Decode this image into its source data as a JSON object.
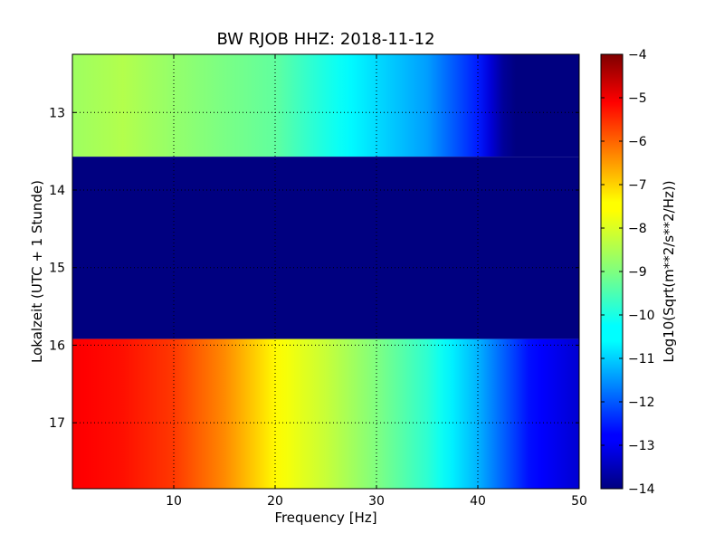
{
  "chart_data": {
    "type": "heatmap",
    "title": "BW RJOB HHZ: 2018-11-12",
    "xlabel": "Frequency [Hz]",
    "ylabel": "Lokalzeit (UTC + 1 Stunde)",
    "xlim": [
      0,
      50
    ],
    "ylim": [
      12.25,
      17.85
    ],
    "x_ticks": [
      10,
      20,
      30,
      40,
      50
    ],
    "x_tick_labels": [
      "10",
      "20",
      "30",
      "40",
      "50"
    ],
    "y_ticks": [
      13,
      14,
      15,
      16,
      17
    ],
    "y_tick_labels": [
      "13",
      "14",
      "15",
      "16",
      "17"
    ],
    "grid": true,
    "colormap": "jet",
    "colorbar": {
      "label": "Log10(Sqrt(m**2/s**2/Hz))",
      "min": -14,
      "max": -4,
      "ticks": [
        -4,
        -5,
        -6,
        -7,
        -8,
        -9,
        -10,
        -11,
        -12,
        -13,
        -14
      ],
      "tick_labels": [
        "−4",
        "−5",
        "−6",
        "−7",
        "−8",
        "−9",
        "−10",
        "−11",
        "−12",
        "−13",
        "−14"
      ]
    },
    "bands": [
      {
        "time_start": 12.25,
        "time_end": 13.57,
        "profile": [
          [
            0,
            -8.7
          ],
          [
            5,
            -8.5
          ],
          [
            10,
            -8.8
          ],
          [
            20,
            -9.3
          ],
          [
            25,
            -10.0
          ],
          [
            30,
            -10.6
          ],
          [
            35,
            -11.2
          ],
          [
            40,
            -12.5
          ],
          [
            42,
            -13.5
          ],
          [
            43,
            -14.0
          ],
          [
            50,
            -14.0
          ]
        ]
      },
      {
        "time_start": 13.57,
        "time_end": 15.92,
        "profile": [
          [
            0,
            -14.0
          ],
          [
            50,
            -14.0
          ]
        ]
      },
      {
        "time_start": 15.92,
        "time_end": 17.85,
        "profile": [
          [
            0,
            -5.2
          ],
          [
            5,
            -5.4
          ],
          [
            10,
            -5.8
          ],
          [
            15,
            -6.6
          ],
          [
            20,
            -7.7
          ],
          [
            25,
            -8.3
          ],
          [
            30,
            -9.0
          ],
          [
            35,
            -9.8
          ],
          [
            40,
            -11.0
          ],
          [
            45,
            -12.6
          ],
          [
            50,
            -13.2
          ]
        ]
      }
    ]
  }
}
